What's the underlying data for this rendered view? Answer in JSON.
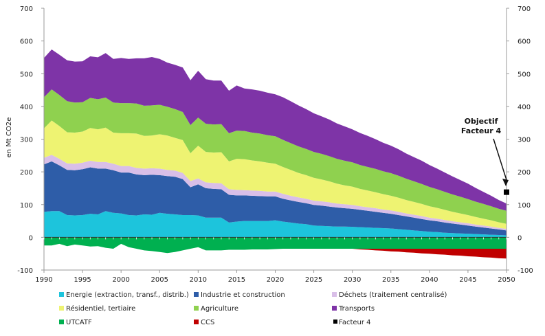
{
  "chart_data": {
    "type": "area",
    "ylabel": "en Mt CO2e",
    "ylim": [
      -100,
      700
    ],
    "y_ticks": [
      -100,
      0,
      100,
      200,
      300,
      400,
      500,
      600,
      700
    ],
    "x_ticks": [
      1990,
      1995,
      2000,
      2005,
      2010,
      2015,
      2020,
      2025,
      2030,
      2035,
      2040,
      2045,
      2050
    ],
    "x_range": [
      1990,
      2050
    ],
    "legend_placement": "bottom",
    "x": [
      1990,
      1991,
      1992,
      1993,
      1994,
      1995,
      1996,
      1997,
      1998,
      1999,
      2000,
      2001,
      2002,
      2003,
      2004,
      2005,
      2006,
      2007,
      2008,
      2009,
      2010,
      2011,
      2012,
      2013,
      2014,
      2015,
      2016,
      2017,
      2018,
      2019,
      2020,
      2021,
      2022,
      2023,
      2024,
      2025,
      2026,
      2027,
      2028,
      2029,
      2030,
      2031,
      2032,
      2033,
      2034,
      2035,
      2036,
      2037,
      2038,
      2039,
      2040,
      2041,
      2042,
      2043,
      2044,
      2045,
      2046,
      2047,
      2048,
      2049,
      2050
    ],
    "positive_series": [
      {
        "name": "Energie (extraction, transf., distrib.)",
        "color": "#1dc4dc",
        "values": [
          78,
          80,
          80,
          68,
          67,
          68,
          72,
          70,
          80,
          75,
          73,
          68,
          67,
          70,
          69,
          75,
          72,
          70,
          68,
          68,
          67,
          60,
          60,
          60,
          45,
          48,
          50,
          50,
          50,
          50,
          52,
          48,
          45,
          42,
          40,
          36,
          35,
          34,
          33,
          33,
          32,
          31,
          30,
          29,
          28,
          27,
          25,
          23,
          21,
          19,
          17,
          16,
          14,
          13,
          12,
          11,
          10,
          9,
          8,
          7,
          6
        ]
      },
      {
        "name": "Industrie et construction",
        "color": "#2e5da8",
        "values": [
          145,
          152,
          140,
          138,
          138,
          140,
          142,
          140,
          130,
          130,
          125,
          130,
          125,
          120,
          122,
          115,
          115,
          115,
          110,
          85,
          95,
          90,
          88,
          87,
          85,
          80,
          78,
          77,
          76,
          75,
          73,
          70,
          68,
          66,
          64,
          63,
          62,
          60,
          58,
          56,
          55,
          53,
          51,
          49,
          47,
          45,
          43,
          41,
          39,
          37,
          35,
          33,
          31,
          29,
          27,
          25,
          23,
          21,
          19,
          17,
          15
        ]
      },
      {
        "name": "Déchets (traitement centralisé)",
        "color": "#d9bfe8",
        "values": [
          20,
          20,
          20,
          20,
          20,
          20,
          20,
          20,
          20,
          20,
          20,
          20,
          20,
          20,
          20,
          20,
          19,
          19,
          19,
          19,
          18,
          18,
          18,
          18,
          17,
          17,
          16,
          16,
          16,
          15,
          15,
          15,
          14,
          14,
          14,
          13,
          13,
          13,
          12,
          12,
          12,
          11,
          11,
          11,
          10,
          10,
          10,
          9,
          9,
          9,
          8,
          8,
          8,
          7,
          7,
          7,
          6,
          6,
          6,
          5,
          5
        ]
      },
      {
        "name": "Résidentiel, tertiaire",
        "color": "#eef372",
        "values": [
          90,
          105,
          100,
          95,
          95,
          95,
          100,
          100,
          105,
          95,
          100,
          100,
          105,
          100,
          100,
          105,
          105,
          100,
          100,
          85,
          100,
          93,
          93,
          95,
          85,
          95,
          95,
          92,
          90,
          88,
          85,
          82,
          79,
          75,
          72,
          70,
          67,
          64,
          61,
          58,
          56,
          53,
          51,
          49,
          47,
          45,
          43,
          41,
          39,
          37,
          35,
          33,
          31,
          29,
          27,
          25,
          23,
          21,
          19,
          17,
          15
        ]
      },
      {
        "name": "Agriculture",
        "color": "#8fd14f",
        "values": [
          95,
          95,
          95,
          95,
          92,
          90,
          92,
          92,
          92,
          92,
          92,
          92,
          92,
          92,
          92,
          90,
          88,
          88,
          86,
          86,
          86,
          86,
          86,
          86,
          86,
          86,
          86,
          85,
          85,
          84,
          84,
          83,
          82,
          81,
          80,
          79,
          78,
          77,
          76,
          75,
          74,
          73,
          72,
          71,
          70,
          69,
          67,
          65,
          63,
          61,
          59,
          57,
          55,
          53,
          51,
          49,
          47,
          45,
          43,
          41,
          40
        ]
      },
      {
        "name": "Transports",
        "color": "#7e34a7",
        "values": [
          120,
          122,
          123,
          125,
          125,
          125,
          127,
          128,
          136,
          133,
          138,
          135,
          138,
          145,
          148,
          140,
          135,
          135,
          136,
          137,
          143,
          136,
          134,
          133,
          130,
          138,
          130,
          132,
          131,
          130,
          128,
          130,
          128,
          125,
          122,
          118,
          115,
          112,
          108,
          105,
          101,
          98,
          95,
          91,
          87,
          84,
          81,
          77,
          74,
          71,
          67,
          63,
          59,
          55,
          51,
          47,
          42,
          37,
          32,
          27,
          22
        ]
      }
    ],
    "negative_series": [
      {
        "name": "UTCATF",
        "color": "#00b050",
        "values": [
          -25,
          -25,
          -20,
          -27,
          -22,
          -25,
          -28,
          -27,
          -32,
          -35,
          -20,
          -30,
          -35,
          -40,
          -42,
          -45,
          -48,
          -45,
          -40,
          -35,
          -30,
          -40,
          -40,
          -40,
          -38,
          -38,
          -38,
          -37,
          -37,
          -37,
          -36,
          -35,
          -35,
          -35,
          -35,
          -35,
          -35,
          -35,
          -35,
          -35,
          -35,
          -35,
          -35,
          -35,
          -35,
          -35,
          -35,
          -35,
          -35,
          -35,
          -35,
          -35,
          -35,
          -35,
          -35,
          -35,
          -35,
          -35,
          -35,
          -35,
          -35
        ]
      },
      {
        "name": "CCS",
        "color": "#c00000",
        "values": [
          0,
          0,
          0,
          0,
          0,
          0,
          0,
          0,
          0,
          0,
          0,
          0,
          0,
          0,
          0,
          0,
          0,
          0,
          0,
          0,
          0,
          0,
          0,
          0,
          0,
          0,
          0,
          0,
          0,
          0,
          0,
          0,
          0,
          0,
          0,
          0,
          0,
          0,
          0,
          0,
          0,
          -2,
          -3,
          -5,
          -6,
          -8,
          -9,
          -11,
          -12,
          -14,
          -15,
          -17,
          -18,
          -20,
          -21,
          -23,
          -24,
          -26,
          -27,
          -29,
          -30
        ]
      }
    ],
    "markers": [
      {
        "name": "Facteur 4",
        "color": "#000000",
        "x": 2050,
        "y": 138
      }
    ],
    "annotation": {
      "line1": "Objectif",
      "line2": "Facteur 4",
      "target_x": 2050,
      "target_y": 150
    }
  }
}
